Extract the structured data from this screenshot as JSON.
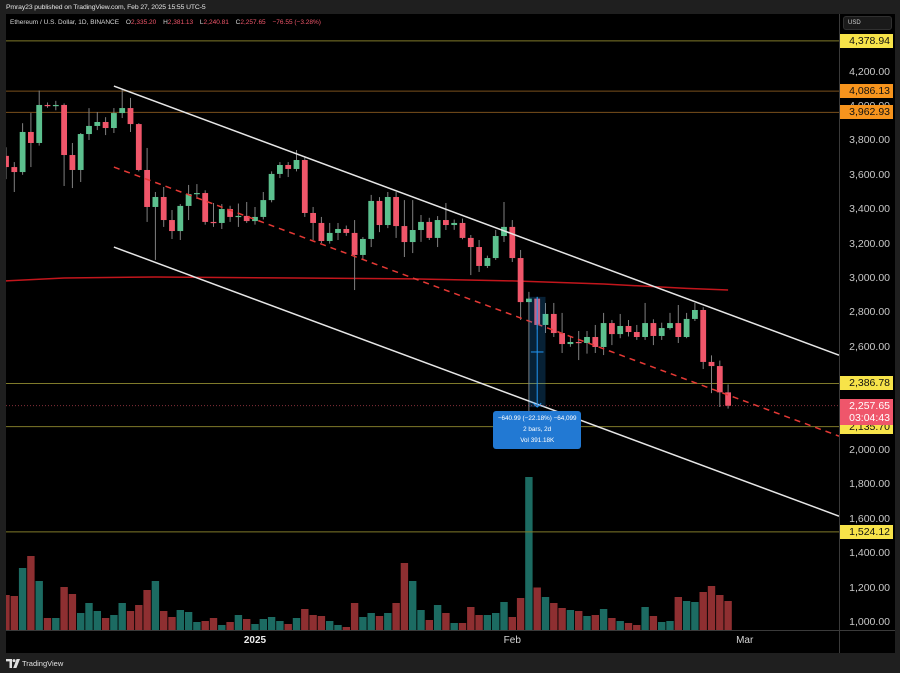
{
  "header": {
    "publisher_line": "Pmray23 published on TradingView.com, Feb 27, 2025 15:55 UTC-5"
  },
  "legend": {
    "symbol": "Ethereum / U.S. Dollar, 1D, BINANCE",
    "o_label": "O",
    "o_value": "2,335.20",
    "h_label": "H",
    "h_value": "2,381.13",
    "l_label": "L",
    "l_value": "2,240.81",
    "c_label": "C",
    "c_value": "2,257.65",
    "change": "−76.55 (−3.28%)"
  },
  "price_axis": {
    "currency": "USD",
    "ticks": [
      {
        "value": 4200,
        "label": "4,200.00"
      },
      {
        "value": 4000,
        "label": "4,000.00"
      },
      {
        "value": 3800,
        "label": "3,800.00"
      },
      {
        "value": 3600,
        "label": "3,600.00"
      },
      {
        "value": 3400,
        "label": "3,400.00"
      },
      {
        "value": 3200,
        "label": "3,200.00"
      },
      {
        "value": 3000,
        "label": "3,000.00"
      },
      {
        "value": 2800,
        "label": "2,800.00"
      },
      {
        "value": 2600,
        "label": "2,600.00"
      },
      {
        "value": 2000,
        "label": "2,000.00"
      },
      {
        "value": 1800,
        "label": "1,800.00"
      },
      {
        "value": 1600,
        "label": "1,600.00"
      },
      {
        "value": 1400,
        "label": "1,400.00"
      },
      {
        "value": 1200,
        "label": "1,200.00"
      },
      {
        "value": 1000,
        "label": "1,000.00"
      }
    ]
  },
  "time_axis": {
    "labels": [
      {
        "text": "2025",
        "date": "2025-01-01",
        "bold": true
      },
      {
        "text": "Feb",
        "date": "2025-02-01",
        "bold": false
      },
      {
        "text": "Mar",
        "date": "2025-03-01",
        "bold": false
      }
    ]
  },
  "measure": {
    "line1": "−640.99 (−22.18%) −64,099",
    "line2": "2 bars, 2d",
    "line3": "Vol 391.18K"
  },
  "footer": {
    "brand": "TradingView"
  },
  "colors": {
    "up": "#5cc08e",
    "down": "#f0566a",
    "wick": "#808080",
    "vol_up": "#1c6b62",
    "vol_down": "#8e2f31",
    "level_yellow_label": "#f7e349",
    "level_yellow_line": "#7f7a2a",
    "level_orange_label": "#f7941d",
    "level_orange_line": "#7a4f1c",
    "channel": "#e6e6e6",
    "channel_mid": "#e53935",
    "ma": "#c3161c",
    "measure": "#2196f3",
    "current_price": "#ef566b"
  },
  "chart_data": {
    "type": "candlestick",
    "title": "Ethereum / U.S. Dollar, 1D, BINANCE",
    "xlabel": "",
    "ylabel": "USD",
    "ylim": [
      953,
      4535
    ],
    "grid": false,
    "x_tick_labels": [
      "2025",
      "Feb",
      "Mar"
    ],
    "y_ticks": [
      1000,
      1200,
      1400,
      1600,
      1800,
      2000,
      2600,
      2800,
      3000,
      3200,
      3400,
      3600,
      3800,
      4000,
      4200
    ],
    "candles": [
      {
        "date": "2024-12-02",
        "open": 3710,
        "high": 3760,
        "low": 3575,
        "close": 3645,
        "volume_k": 70
      },
      {
        "date": "2024-12-03",
        "open": 3645,
        "high": 3674,
        "low": 3500,
        "close": 3616,
        "volume_k": 68
      },
      {
        "date": "2024-12-04",
        "open": 3616,
        "high": 3900,
        "low": 3600,
        "close": 3849,
        "volume_k": 124
      },
      {
        "date": "2024-12-05",
        "open": 3849,
        "high": 3960,
        "low": 3645,
        "close": 3785,
        "volume_k": 148
      },
      {
        "date": "2024-12-06",
        "open": 3785,
        "high": 4090,
        "low": 3770,
        "close": 4006,
        "volume_k": 98
      },
      {
        "date": "2024-12-07",
        "open": 4006,
        "high": 4020,
        "low": 3990,
        "close": 4000,
        "volume_k": 24
      },
      {
        "date": "2024-12-08",
        "open": 4000,
        "high": 4030,
        "low": 3975,
        "close": 4006,
        "volume_k": 24
      },
      {
        "date": "2024-12-09",
        "open": 4006,
        "high": 4015,
        "low": 3535,
        "close": 3715,
        "volume_k": 86
      },
      {
        "date": "2024-12-10",
        "open": 3715,
        "high": 3785,
        "low": 3523,
        "close": 3628,
        "volume_k": 72
      },
      {
        "date": "2024-12-11",
        "open": 3628,
        "high": 3843,
        "low": 3558,
        "close": 3837,
        "volume_k": 34
      },
      {
        "date": "2024-12-12",
        "open": 3837,
        "high": 3988,
        "low": 3802,
        "close": 3884,
        "volume_k": 54
      },
      {
        "date": "2024-12-13",
        "open": 3884,
        "high": 3965,
        "low": 3860,
        "close": 3907,
        "volume_k": 38
      },
      {
        "date": "2024-12-14",
        "open": 3907,
        "high": 3935,
        "low": 3831,
        "close": 3872,
        "volume_k": 24
      },
      {
        "date": "2024-12-15",
        "open": 3872,
        "high": 3988,
        "low": 3843,
        "close": 3959,
        "volume_k": 30
      },
      {
        "date": "2024-12-16",
        "open": 3959,
        "high": 4093,
        "low": 3930,
        "close": 3988,
        "volume_k": 54
      },
      {
        "date": "2024-12-17",
        "open": 3988,
        "high": 4047,
        "low": 3849,
        "close": 3895,
        "volume_k": 38
      },
      {
        "date": "2024-12-18",
        "open": 3895,
        "high": 3900,
        "low": 3620,
        "close": 3628,
        "volume_k": 50
      },
      {
        "date": "2024-12-19",
        "open": 3628,
        "high": 3756,
        "low": 3326,
        "close": 3413,
        "volume_k": 80
      },
      {
        "date": "2024-12-20",
        "open": 3413,
        "high": 3500,
        "low": 3105,
        "close": 3471,
        "volume_k": 98
      },
      {
        "date": "2024-12-21",
        "open": 3471,
        "high": 3529,
        "low": 3297,
        "close": 3337,
        "volume_k": 38
      },
      {
        "date": "2024-12-22",
        "open": 3337,
        "high": 3395,
        "low": 3227,
        "close": 3273,
        "volume_k": 26
      },
      {
        "date": "2024-12-23",
        "open": 3273,
        "high": 3430,
        "low": 3221,
        "close": 3419,
        "volume_k": 40
      },
      {
        "date": "2024-12-24",
        "open": 3419,
        "high": 3541,
        "low": 3337,
        "close": 3488,
        "volume_k": 36
      },
      {
        "date": "2024-12-25",
        "open": 3488,
        "high": 3546,
        "low": 3460,
        "close": 3494,
        "volume_k": 16
      },
      {
        "date": "2024-12-26",
        "open": 3494,
        "high": 3510,
        "low": 3310,
        "close": 3326,
        "volume_k": 18
      },
      {
        "date": "2024-12-27",
        "open": 3326,
        "high": 3436,
        "low": 3297,
        "close": 3320,
        "volume_k": 24
      },
      {
        "date": "2024-12-28",
        "open": 3320,
        "high": 3430,
        "low": 3285,
        "close": 3401,
        "volume_k": 10
      },
      {
        "date": "2024-12-29",
        "open": 3401,
        "high": 3420,
        "low": 3326,
        "close": 3355,
        "volume_k": 16
      },
      {
        "date": "2024-12-30",
        "open": 3355,
        "high": 3433,
        "low": 3297,
        "close": 3361,
        "volume_k": 30
      },
      {
        "date": "2024-12-31",
        "open": 3361,
        "high": 3442,
        "low": 3320,
        "close": 3331,
        "volume_k": 22
      },
      {
        "date": "2025-01-01",
        "open": 3331,
        "high": 3413,
        "low": 3310,
        "close": 3355,
        "volume_k": 12
      },
      {
        "date": "2025-01-02",
        "open": 3355,
        "high": 3500,
        "low": 3340,
        "close": 3453,
        "volume_k": 22
      },
      {
        "date": "2025-01-03",
        "open": 3453,
        "high": 3620,
        "low": 3440,
        "close": 3605,
        "volume_k": 26
      },
      {
        "date": "2025-01-04",
        "open": 3605,
        "high": 3674,
        "low": 3581,
        "close": 3657,
        "volume_k": 18
      },
      {
        "date": "2025-01-05",
        "open": 3657,
        "high": 3674,
        "low": 3587,
        "close": 3634,
        "volume_k": 12
      },
      {
        "date": "2025-01-06",
        "open": 3634,
        "high": 3744,
        "low": 3620,
        "close": 3686,
        "volume_k": 24
      },
      {
        "date": "2025-01-07",
        "open": 3686,
        "high": 3700,
        "low": 3355,
        "close": 3378,
        "volume_k": 42
      },
      {
        "date": "2025-01-08",
        "open": 3378,
        "high": 3413,
        "low": 3221,
        "close": 3320,
        "volume_k": 30
      },
      {
        "date": "2025-01-09",
        "open": 3320,
        "high": 3355,
        "low": 3203,
        "close": 3215,
        "volume_k": 28
      },
      {
        "date": "2025-01-10",
        "open": 3215,
        "high": 3320,
        "low": 3200,
        "close": 3262,
        "volume_k": 18
      },
      {
        "date": "2025-01-11",
        "open": 3262,
        "high": 3320,
        "low": 3221,
        "close": 3285,
        "volume_k": 10
      },
      {
        "date": "2025-01-12",
        "open": 3285,
        "high": 3305,
        "low": 3245,
        "close": 3262,
        "volume_k": 6
      },
      {
        "date": "2025-01-13",
        "open": 3262,
        "high": 3337,
        "low": 2930,
        "close": 3134,
        "volume_k": 54
      },
      {
        "date": "2025-01-14",
        "open": 3134,
        "high": 3238,
        "low": 3105,
        "close": 3227,
        "volume_k": 26
      },
      {
        "date": "2025-01-15",
        "open": 3227,
        "high": 3483,
        "low": 3180,
        "close": 3448,
        "volume_k": 34
      },
      {
        "date": "2025-01-16",
        "open": 3448,
        "high": 3470,
        "low": 3267,
        "close": 3308,
        "volume_k": 28
      },
      {
        "date": "2025-01-17",
        "open": 3308,
        "high": 3500,
        "low": 3290,
        "close": 3471,
        "volume_k": 34
      },
      {
        "date": "2025-01-18",
        "open": 3471,
        "high": 3500,
        "low": 3233,
        "close": 3302,
        "volume_k": 54
      },
      {
        "date": "2025-01-19",
        "open": 3302,
        "high": 3453,
        "low": 3122,
        "close": 3209,
        "volume_k": 134
      },
      {
        "date": "2025-01-20",
        "open": 3209,
        "high": 3453,
        "low": 3145,
        "close": 3279,
        "volume_k": 98
      },
      {
        "date": "2025-01-21",
        "open": 3279,
        "high": 3366,
        "low": 3210,
        "close": 3326,
        "volume_k": 40
      },
      {
        "date": "2025-01-22",
        "open": 3326,
        "high": 3350,
        "low": 3221,
        "close": 3233,
        "volume_k": 20
      },
      {
        "date": "2025-01-23",
        "open": 3233,
        "high": 3360,
        "low": 3180,
        "close": 3337,
        "volume_k": 50
      },
      {
        "date": "2025-01-24",
        "open": 3337,
        "high": 3436,
        "low": 3279,
        "close": 3308,
        "volume_k": 34
      },
      {
        "date": "2025-01-25",
        "open": 3308,
        "high": 3340,
        "low": 3280,
        "close": 3320,
        "volume_k": 14
      },
      {
        "date": "2025-01-26",
        "open": 3320,
        "high": 3345,
        "low": 3225,
        "close": 3233,
        "volume_k": 14
      },
      {
        "date": "2025-01-27",
        "open": 3233,
        "high": 3250,
        "low": 3017,
        "close": 3180,
        "volume_k": 46
      },
      {
        "date": "2025-01-28",
        "open": 3180,
        "high": 3221,
        "low": 3035,
        "close": 3070,
        "volume_k": 30
      },
      {
        "date": "2025-01-29",
        "open": 3070,
        "high": 3130,
        "low": 3058,
        "close": 3116,
        "volume_k": 30
      },
      {
        "date": "2025-01-30",
        "open": 3116,
        "high": 3279,
        "low": 3105,
        "close": 3244,
        "volume_k": 34
      },
      {
        "date": "2025-01-31",
        "open": 3244,
        "high": 3442,
        "low": 3209,
        "close": 3297,
        "volume_k": 56
      },
      {
        "date": "2025-02-01",
        "open": 3297,
        "high": 3337,
        "low": 3093,
        "close": 3116,
        "volume_k": 26
      },
      {
        "date": "2025-02-02",
        "open": 3116,
        "high": 3163,
        "low": 2756,
        "close": 2860,
        "volume_k": 64
      },
      {
        "date": "2025-02-03",
        "open": 2860,
        "high": 2919,
        "low": 2150,
        "close": 2880,
        "volume_k": 306
      },
      {
        "date": "2025-02-04",
        "open": 2880,
        "high": 2890,
        "low": 2700,
        "close": 2727,
        "volume_k": 85
      },
      {
        "date": "2025-02-05",
        "open": 2727,
        "high": 2855,
        "low": 2680,
        "close": 2791,
        "volume_k": 66
      },
      {
        "date": "2025-02-06",
        "open": 2791,
        "high": 2855,
        "low": 2657,
        "close": 2680,
        "volume_k": 54
      },
      {
        "date": "2025-02-07",
        "open": 2680,
        "high": 2797,
        "low": 2564,
        "close": 2616,
        "volume_k": 44
      },
      {
        "date": "2025-02-08",
        "open": 2616,
        "high": 2660,
        "low": 2600,
        "close": 2628,
        "volume_k": 40
      },
      {
        "date": "2025-02-09",
        "open": 2628,
        "high": 2692,
        "low": 2523,
        "close": 2622,
        "volume_k": 38
      },
      {
        "date": "2025-02-10",
        "open": 2622,
        "high": 2692,
        "low": 2560,
        "close": 2657,
        "volume_k": 28
      },
      {
        "date": "2025-02-11",
        "open": 2657,
        "high": 2727,
        "low": 2564,
        "close": 2599,
        "volume_k": 30
      },
      {
        "date": "2025-02-12",
        "open": 2599,
        "high": 2797,
        "low": 2552,
        "close": 2738,
        "volume_k": 42
      },
      {
        "date": "2025-02-13",
        "open": 2738,
        "high": 2756,
        "low": 2610,
        "close": 2674,
        "volume_k": 24
      },
      {
        "date": "2025-02-14",
        "open": 2674,
        "high": 2791,
        "low": 2650,
        "close": 2721,
        "volume_k": 18
      },
      {
        "date": "2025-02-15",
        "open": 2721,
        "high": 2756,
        "low": 2660,
        "close": 2686,
        "volume_k": 14
      },
      {
        "date": "2025-02-16",
        "open": 2686,
        "high": 2727,
        "low": 2640,
        "close": 2657,
        "volume_k": 10
      },
      {
        "date": "2025-02-17",
        "open": 2657,
        "high": 2855,
        "low": 2640,
        "close": 2738,
        "volume_k": 46
      },
      {
        "date": "2025-02-18",
        "open": 2738,
        "high": 2760,
        "low": 2610,
        "close": 2663,
        "volume_k": 28
      },
      {
        "date": "2025-02-19",
        "open": 2663,
        "high": 2740,
        "low": 2640,
        "close": 2709,
        "volume_k": 16
      },
      {
        "date": "2025-02-20",
        "open": 2709,
        "high": 2797,
        "low": 2700,
        "close": 2738,
        "volume_k": 18
      },
      {
        "date": "2025-02-21",
        "open": 2738,
        "high": 2843,
        "low": 2622,
        "close": 2657,
        "volume_k": 66
      },
      {
        "date": "2025-02-22",
        "open": 2657,
        "high": 2797,
        "low": 2650,
        "close": 2762,
        "volume_k": 58
      },
      {
        "date": "2025-02-23",
        "open": 2762,
        "high": 2855,
        "low": 2750,
        "close": 2814,
        "volume_k": 56
      },
      {
        "date": "2025-02-24",
        "open": 2814,
        "high": 2830,
        "low": 2471,
        "close": 2512,
        "volume_k": 76
      },
      {
        "date": "2025-02-25",
        "open": 2512,
        "high": 2550,
        "low": 2331,
        "close": 2488,
        "volume_k": 88
      },
      {
        "date": "2025-02-26",
        "open": 2488,
        "high": 2520,
        "low": 2250,
        "close": 2335.2,
        "volume_k": 70
      },
      {
        "date": "2025-02-27",
        "open": 2335.2,
        "high": 2381.13,
        "low": 2240.81,
        "close": 2257.65,
        "volume_k": 58
      }
    ],
    "current_price": {
      "value": 2257.65,
      "label": "2,257.65",
      "countdown": "03:04:43"
    },
    "horizontal_levels": [
      {
        "value": 4378.94,
        "label": "4,378.94",
        "style": "yellow"
      },
      {
        "value": 4086.13,
        "label": "4,086.13",
        "style": "orange"
      },
      {
        "value": 3962.93,
        "label": "3,962.93",
        "style": "orange"
      },
      {
        "value": 2386.78,
        "label": "2,386.78",
        "style": "yellow"
      },
      {
        "value": 2135.7,
        "label": "2,135.70",
        "style": "yellow"
      },
      {
        "value": 1524.12,
        "label": "1,524.12",
        "style": "yellow"
      }
    ],
    "descending_channel": {
      "upper": [
        {
          "date": "2024-12-15",
          "price": 4116
        },
        {
          "date": "2025-03-12",
          "price": 2558
        }
      ],
      "middle_dashed": [
        {
          "date": "2024-12-15",
          "price": 3645
        },
        {
          "date": "2025-03-12",
          "price": 2087
        }
      ],
      "lower": [
        {
          "date": "2024-12-15",
          "price": 3180
        },
        {
          "date": "2025-03-12",
          "price": 1622
        }
      ],
      "extend_right": true
    },
    "moving_average_line": [
      {
        "date": "2024-12-02",
        "price": 2983
      },
      {
        "date": "2024-12-09",
        "price": 3000
      },
      {
        "date": "2024-12-20",
        "price": 3006
      },
      {
        "date": "2025-01-06",
        "price": 3000
      },
      {
        "date": "2025-01-20",
        "price": 2995
      },
      {
        "date": "2025-02-01",
        "price": 2983
      },
      {
        "date": "2025-02-12",
        "price": 2965
      },
      {
        "date": "2025-02-22",
        "price": 2940
      },
      {
        "date": "2025-02-27",
        "price": 2930
      }
    ],
    "measure_tool": {
      "from_date": "2025-02-03",
      "to_date": "2025-02-05",
      "from_price": 2890.38,
      "to_price": 2249.39,
      "change": -640.99,
      "change_pct": -22.18,
      "ticks": -64099,
      "bars": 2,
      "days": 2,
      "volume": "391.18K"
    }
  }
}
